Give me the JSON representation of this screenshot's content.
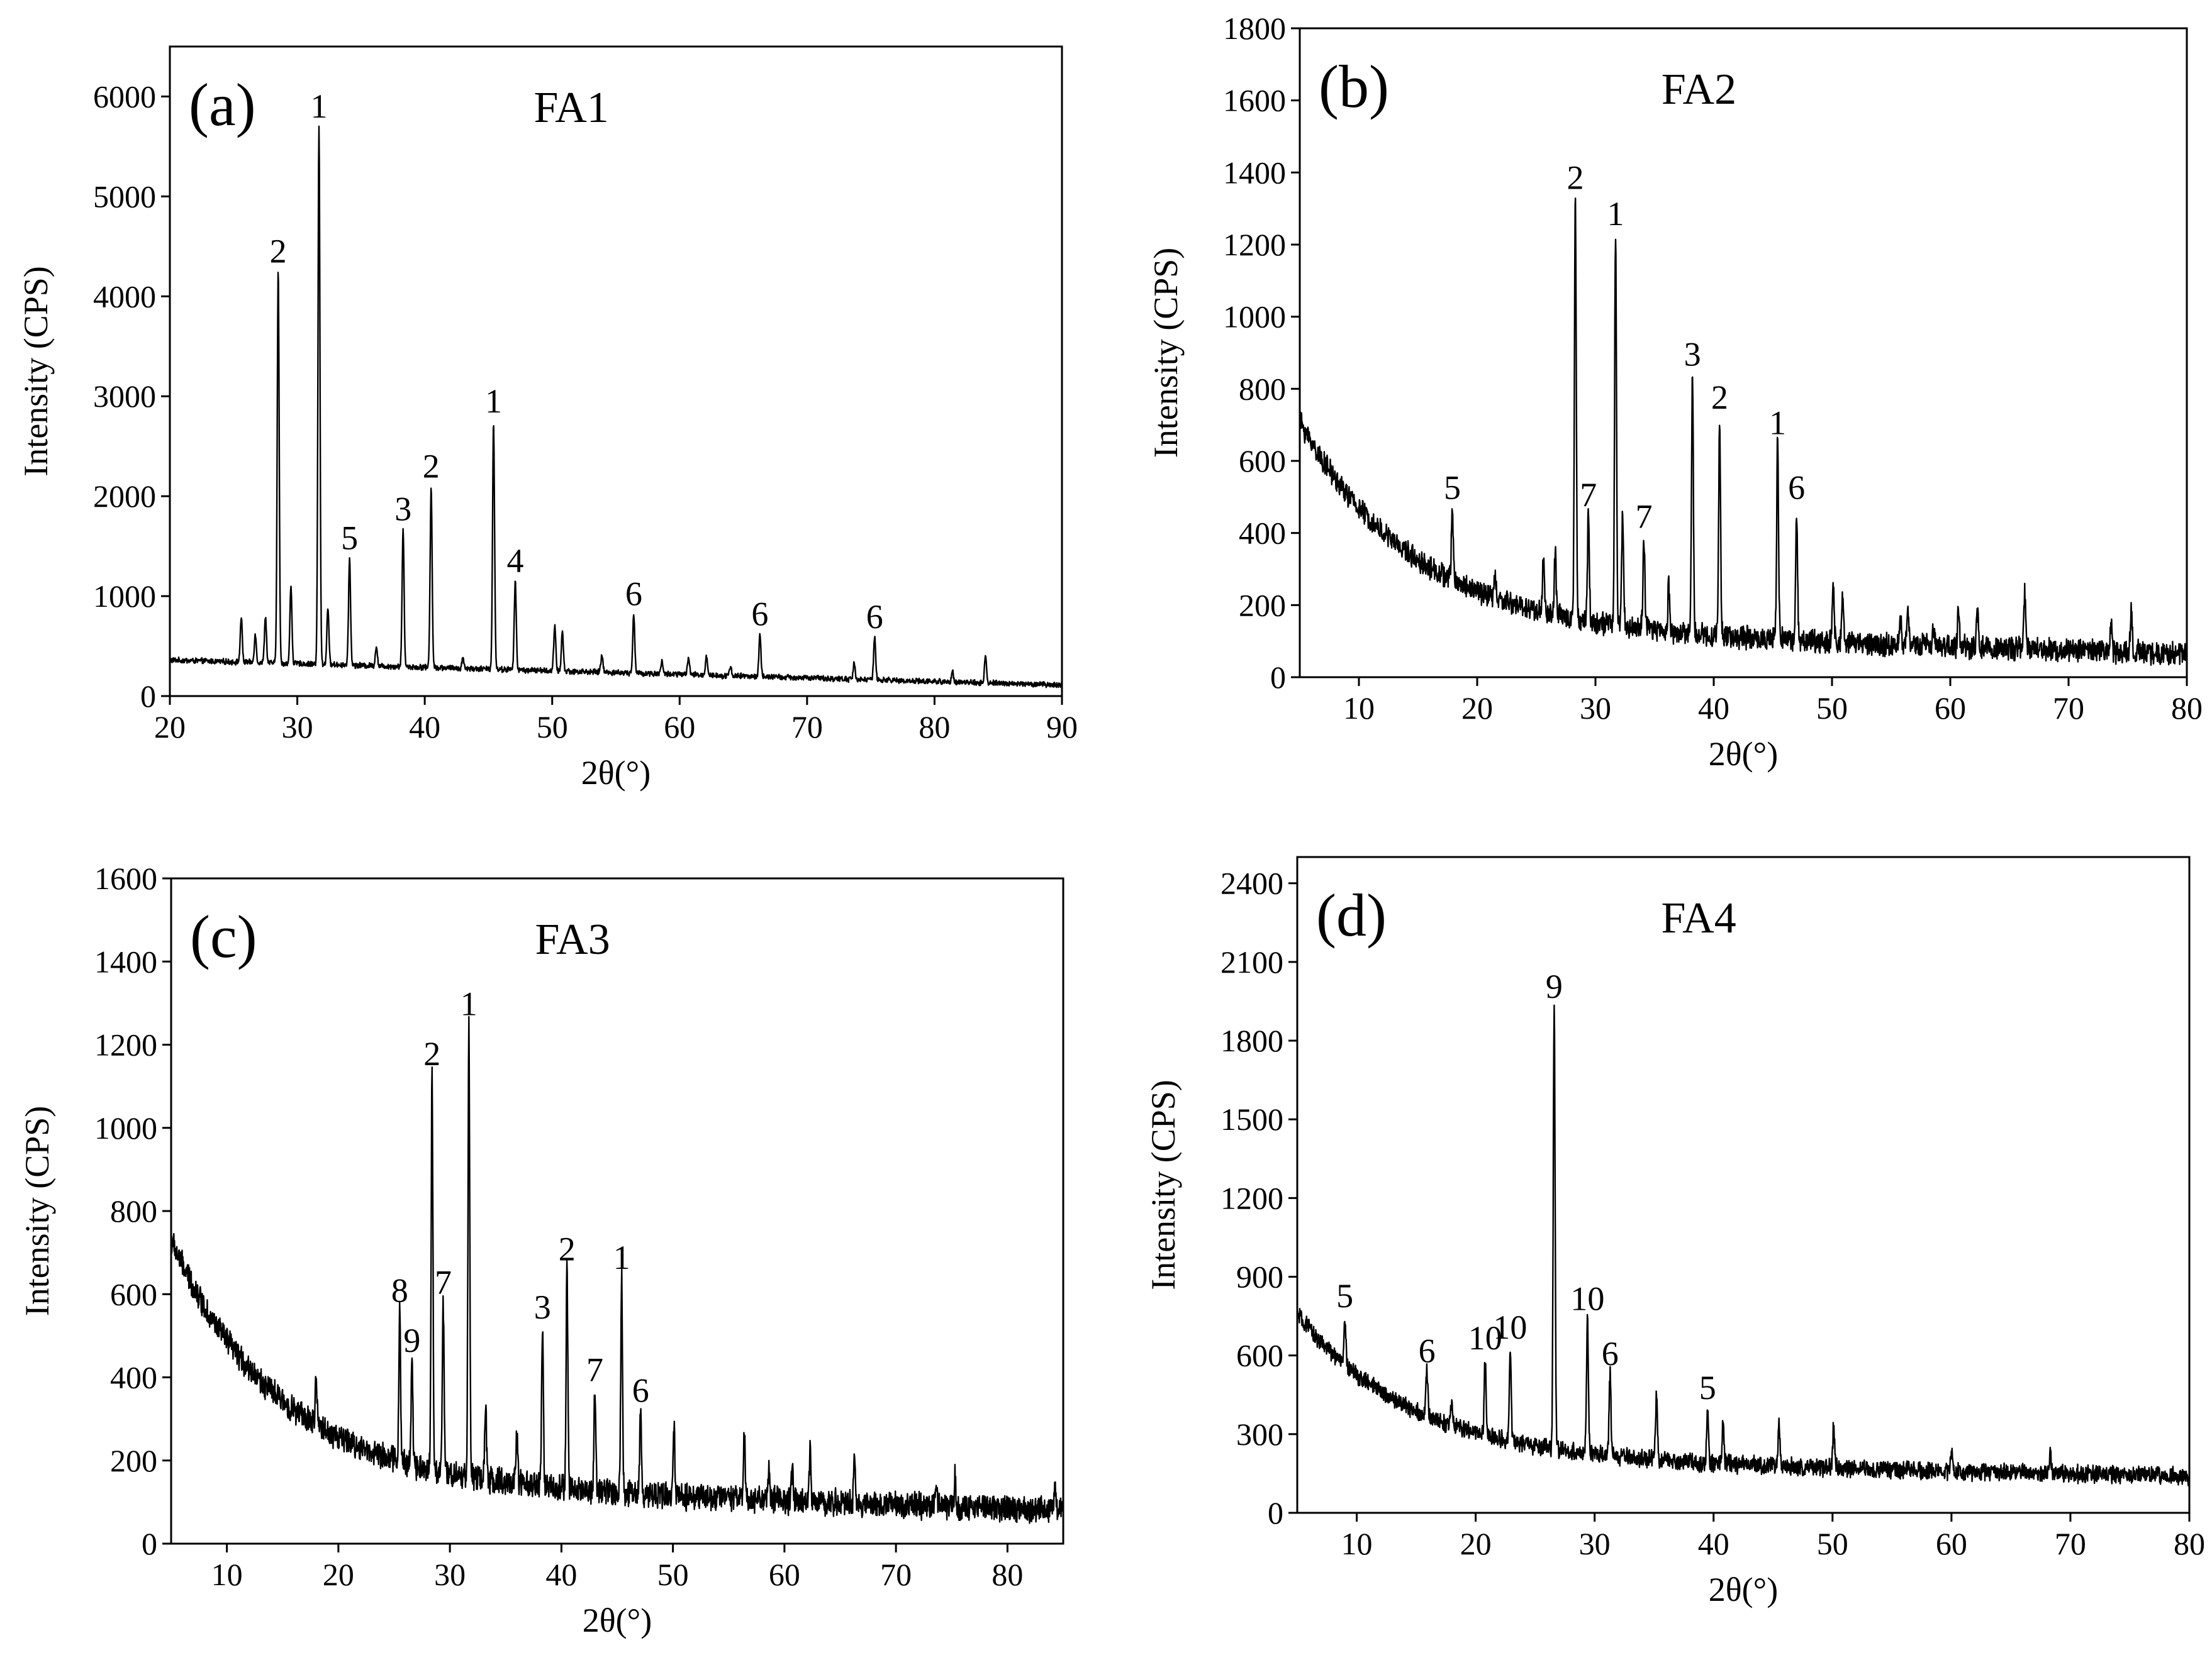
{
  "chart_data": [
    {
      "type": "line",
      "panel_label": "(a)",
      "title": "FA1",
      "xlabel": "2θ(°)",
      "ylabel": "Intensity (CPS)",
      "xlim": [
        20,
        90
      ],
      "ylim": [
        0,
        6500
      ],
      "xticks": [
        20,
        30,
        40,
        50,
        60,
        70,
        80,
        90
      ],
      "yticks": [
        0,
        1000,
        2000,
        3000,
        4000,
        5000,
        6000
      ],
      "grid": false,
      "background": {
        "type": "flat",
        "start": 360,
        "end": 110,
        "noise": 25
      },
      "peaks": [
        {
          "x": 25.6,
          "y": 780
        },
        {
          "x": 26.7,
          "y": 620
        },
        {
          "x": 27.5,
          "y": 800
        },
        {
          "x": 28.5,
          "y": 4250,
          "label": "2"
        },
        {
          "x": 29.5,
          "y": 1100
        },
        {
          "x": 31.7,
          "y": 5700,
          "label": "1"
        },
        {
          "x": 32.4,
          "y": 900
        },
        {
          "x": 34.1,
          "y": 1380,
          "label": "5"
        },
        {
          "x": 36.2,
          "y": 500
        },
        {
          "x": 38.3,
          "y": 1670,
          "label": "3"
        },
        {
          "x": 40.5,
          "y": 2100,
          "label": "2"
        },
        {
          "x": 43.0,
          "y": 380
        },
        {
          "x": 45.4,
          "y": 2750,
          "label": "1"
        },
        {
          "x": 47.1,
          "y": 1150,
          "label": "4"
        },
        {
          "x": 50.2,
          "y": 700
        },
        {
          "x": 50.8,
          "y": 650
        },
        {
          "x": 53.9,
          "y": 420
        },
        {
          "x": 56.4,
          "y": 820,
          "label": "6"
        },
        {
          "x": 58.6,
          "y": 350
        },
        {
          "x": 60.7,
          "y": 380
        },
        {
          "x": 62.1,
          "y": 400
        },
        {
          "x": 64.0,
          "y": 300
        },
        {
          "x": 66.3,
          "y": 620,
          "label": "6"
        },
        {
          "x": 73.7,
          "y": 330
        },
        {
          "x": 75.3,
          "y": 590,
          "label": "6"
        },
        {
          "x": 81.4,
          "y": 260
        },
        {
          "x": 84.0,
          "y": 400
        }
      ]
    },
    {
      "type": "line",
      "panel_label": "(b)",
      "title": "FA2",
      "xlabel": "2θ(°)",
      "ylabel": "Intensity (CPS)",
      "xlim": [
        5,
        80
      ],
      "ylim": [
        0,
        1800
      ],
      "xticks": [
        10,
        20,
        30,
        40,
        50,
        60,
        70,
        80
      ],
      "yticks": [
        0,
        200,
        400,
        600,
        800,
        1000,
        1200,
        1400,
        1600,
        1800
      ],
      "grid": false,
      "background": {
        "type": "decay",
        "start": 640,
        "end": 65,
        "noise": 28
      },
      "peaks": [
        {
          "x": 10.6,
          "y": 450
        },
        {
          "x": 17.9,
          "y": 470,
          "label": "5"
        },
        {
          "x": 21.5,
          "y": 280
        },
        {
          "x": 25.6,
          "y": 330
        },
        {
          "x": 26.6,
          "y": 340
        },
        {
          "x": 28.3,
          "y": 1330,
          "label": "2"
        },
        {
          "x": 29.4,
          "y": 450,
          "label": "7"
        },
        {
          "x": 31.7,
          "y": 1230,
          "label": "1"
        },
        {
          "x": 32.3,
          "y": 460
        },
        {
          "x": 34.1,
          "y": 390,
          "label": "7"
        },
        {
          "x": 36.2,
          "y": 260
        },
        {
          "x": 38.2,
          "y": 840,
          "label": "3"
        },
        {
          "x": 40.5,
          "y": 720,
          "label": "2"
        },
        {
          "x": 45.4,
          "y": 650,
          "label": "1"
        },
        {
          "x": 47.0,
          "y": 470,
          "label": "6"
        },
        {
          "x": 50.1,
          "y": 250
        },
        {
          "x": 50.9,
          "y": 230
        },
        {
          "x": 55.8,
          "y": 150
        },
        {
          "x": 56.4,
          "y": 200
        },
        {
          "x": 58.6,
          "y": 140
        },
        {
          "x": 60.7,
          "y": 190
        },
        {
          "x": 62.3,
          "y": 180
        },
        {
          "x": 66.3,
          "y": 230
        },
        {
          "x": 73.6,
          "y": 150
        },
        {
          "x": 75.3,
          "y": 190
        }
      ]
    },
    {
      "type": "line",
      "panel_label": "(c)",
      "title": "FA3",
      "xlabel": "2θ(°)",
      "ylabel": "Intensity (CPS)",
      "xlim": [
        5,
        85
      ],
      "ylim": [
        0,
        1600
      ],
      "xticks": [
        10,
        20,
        30,
        40,
        50,
        60,
        70,
        80
      ],
      "yticks": [
        0,
        200,
        400,
        600,
        800,
        1000,
        1200,
        1400,
        1600
      ],
      "grid": false,
      "background": {
        "type": "decay",
        "start": 660,
        "end": 80,
        "noise": 28
      },
      "peaks": [
        {
          "x": 18.0,
          "y": 400
        },
        {
          "x": 25.5,
          "y": 560,
          "label": "8"
        },
        {
          "x": 26.6,
          "y": 440,
          "label": "9"
        },
        {
          "x": 28.4,
          "y": 1130,
          "label": "2"
        },
        {
          "x": 29.4,
          "y": 580,
          "label": "7"
        },
        {
          "x": 31.7,
          "y": 1250,
          "label": "1"
        },
        {
          "x": 33.2,
          "y": 330
        },
        {
          "x": 36.0,
          "y": 260
        },
        {
          "x": 38.3,
          "y": 520,
          "label": "3"
        },
        {
          "x": 40.5,
          "y": 660,
          "label": "2"
        },
        {
          "x": 43.0,
          "y": 370,
          "label": "7"
        },
        {
          "x": 45.4,
          "y": 640,
          "label": "1"
        },
        {
          "x": 47.1,
          "y": 320,
          "label": "6"
        },
        {
          "x": 50.1,
          "y": 270
        },
        {
          "x": 56.4,
          "y": 260
        },
        {
          "x": 58.6,
          "y": 180
        },
        {
          "x": 60.7,
          "y": 170
        },
        {
          "x": 62.3,
          "y": 220
        },
        {
          "x": 66.3,
          "y": 220
        },
        {
          "x": 73.6,
          "y": 140
        },
        {
          "x": 75.3,
          "y": 160
        },
        {
          "x": 84.3,
          "y": 140
        }
      ]
    },
    {
      "type": "line",
      "panel_label": "(d)",
      "title": "FA4",
      "xlabel": "2θ(°)",
      "ylabel": "Intensity (CPS)",
      "xlim": [
        5,
        80
      ],
      "ylim": [
        0,
        2500
      ],
      "xticks": [
        10,
        20,
        30,
        40,
        50,
        60,
        70,
        80
      ],
      "yticks": [
        0,
        300,
        600,
        900,
        1200,
        1500,
        1800,
        2100,
        2400
      ],
      "grid": false,
      "background": {
        "type": "decay",
        "start": 690,
        "end": 140,
        "noise": 30
      },
      "peaks": [
        {
          "x": 9.0,
          "y": 750,
          "label": "5"
        },
        {
          "x": 11.2,
          "y": 430
        },
        {
          "x": 15.9,
          "y": 540,
          "label": "6"
        },
        {
          "x": 18.0,
          "y": 420
        },
        {
          "x": 20.8,
          "y": 590,
          "label": "10"
        },
        {
          "x": 22.9,
          "y": 630,
          "label": "10"
        },
        {
          "x": 26.6,
          "y": 1930,
          "label": "9"
        },
        {
          "x": 29.4,
          "y": 740,
          "label": "10"
        },
        {
          "x": 31.3,
          "y": 530,
          "label": "6"
        },
        {
          "x": 35.2,
          "y": 440
        },
        {
          "x": 39.5,
          "y": 400,
          "label": "5"
        },
        {
          "x": 40.8,
          "y": 350
        },
        {
          "x": 45.5,
          "y": 340
        },
        {
          "x": 50.1,
          "y": 330
        },
        {
          "x": 60.0,
          "y": 240
        },
        {
          "x": 68.3,
          "y": 240
        }
      ]
    }
  ]
}
